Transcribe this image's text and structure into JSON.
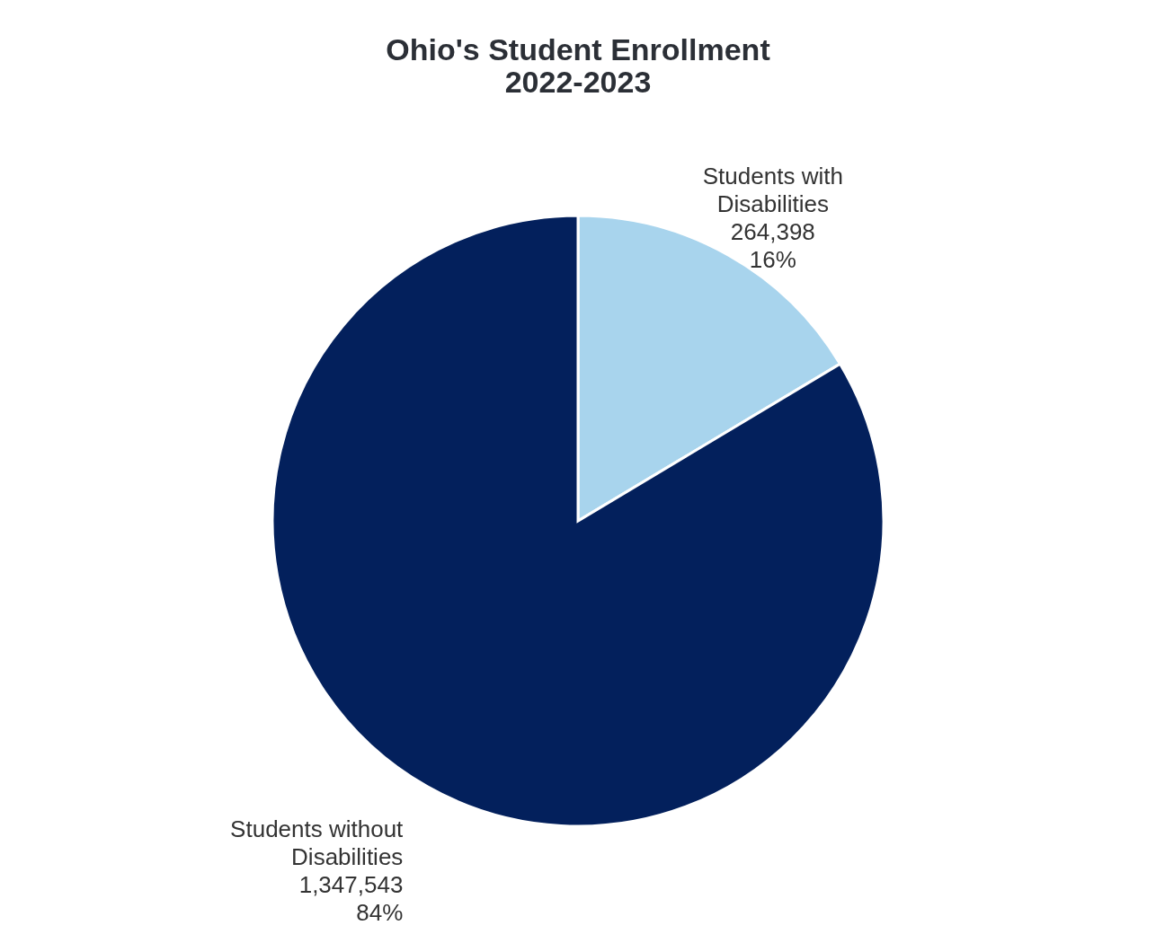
{
  "chart_data": {
    "type": "pie",
    "title": [
      "Ohio's Student Enrollment",
      "2022-2023"
    ],
    "categories": [
      "Students with Disabilities",
      "Students without Disabilities"
    ],
    "values": [
      264398,
      1347543
    ],
    "colors": [
      "#a8d4ed",
      "#03205c"
    ],
    "value_labels": [
      "264,398\n16%",
      "1,347,543\n84%"
    ]
  }
}
